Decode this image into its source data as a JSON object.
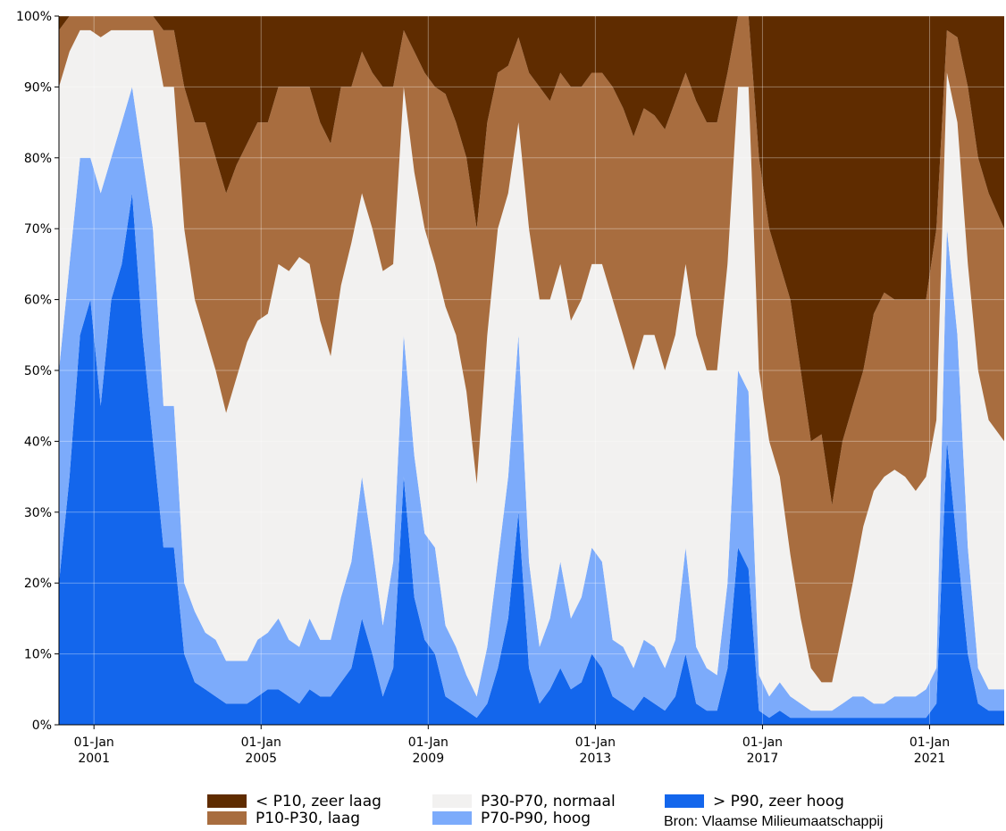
{
  "chart_data": {
    "type": "area",
    "stacked": true,
    "percent": true,
    "y_unit": "%",
    "ylim": [
      0,
      100
    ],
    "y_ticks": [
      0,
      10,
      20,
      30,
      40,
      50,
      60,
      70,
      80,
      90,
      100
    ],
    "y_tick_labels": [
      "0%",
      "10%",
      "20%",
      "30%",
      "40%",
      "50%",
      "60%",
      "70%",
      "80%",
      "90%",
      "100%"
    ],
    "xlim": [
      "2000-03-01",
      "2022-10-15"
    ],
    "x_ticks": [
      "2001-01-01",
      "2005-01-01",
      "2009-01-01",
      "2013-01-01",
      "2017-01-01",
      "2021-01-01"
    ],
    "x_tick_labels": [
      {
        "line1": "01-Jan",
        "line2": "2001"
      },
      {
        "line1": "01-Jan",
        "line2": "2005"
      },
      {
        "line1": "01-Jan",
        "line2": "2009"
      },
      {
        "line1": "01-Jan",
        "line2": "2013"
      },
      {
        "line1": "01-Jan",
        "line2": "2017"
      },
      {
        "line1": "01-Jan",
        "line2": "2021"
      }
    ],
    "grid": true,
    "legend_position": "bottom",
    "series_order_bottom_to_top": [
      "> P90, zeer hoog",
      "P70-P90, hoog",
      "P30-P70, normaal",
      "P10-P30, laag",
      "< P10, zeer laag"
    ],
    "series": [
      {
        "name": "< P10, zeer laag",
        "color": "#5f2c00"
      },
      {
        "name": "P10-P30, laag",
        "color": "#a86d3f"
      },
      {
        "name": "P30-P70, normaal",
        "color": "#f2f1f0"
      },
      {
        "name": "P70-P90, hoog",
        "color": "#7cabfb"
      },
      {
        "name": "> P90, zeer hoog",
        "color": "#1366ec"
      }
    ],
    "x": [
      "2000-03-01",
      "2000-06-01",
      "2000-09-01",
      "2000-12-01",
      "2001-03-01",
      "2001-06-01",
      "2001-09-01",
      "2001-12-01",
      "2002-03-01",
      "2002-06-01",
      "2002-09-01",
      "2002-12-01",
      "2003-03-01",
      "2003-06-01",
      "2003-09-01",
      "2003-12-01",
      "2004-03-01",
      "2004-06-01",
      "2004-09-01",
      "2004-12-01",
      "2005-03-01",
      "2005-06-01",
      "2005-09-01",
      "2005-12-01",
      "2006-03-01",
      "2006-06-01",
      "2006-09-01",
      "2006-12-01",
      "2007-03-01",
      "2007-06-01",
      "2007-09-01",
      "2007-12-01",
      "2008-03-01",
      "2008-06-01",
      "2008-09-01",
      "2008-12-01",
      "2009-03-01",
      "2009-06-01",
      "2009-09-01",
      "2009-12-01",
      "2010-03-01",
      "2010-06-01",
      "2010-09-01",
      "2010-12-01",
      "2011-03-01",
      "2011-06-01",
      "2011-09-01",
      "2011-12-01",
      "2012-03-01",
      "2012-06-01",
      "2012-09-01",
      "2012-12-01",
      "2013-03-01",
      "2013-06-01",
      "2013-09-01",
      "2013-12-01",
      "2014-03-01",
      "2014-06-01",
      "2014-09-01",
      "2014-12-01",
      "2015-03-01",
      "2015-06-01",
      "2015-09-01",
      "2015-12-01",
      "2016-03-01",
      "2016-06-01",
      "2016-09-01",
      "2016-12-01",
      "2017-03-01",
      "2017-06-01",
      "2017-09-01",
      "2017-12-01",
      "2018-03-01",
      "2018-06-01",
      "2018-09-01",
      "2018-12-01",
      "2019-03-01",
      "2019-06-01",
      "2019-09-01",
      "2019-12-01",
      "2020-03-01",
      "2020-06-01",
      "2020-09-01",
      "2020-12-01",
      "2021-03-01",
      "2021-06-01",
      "2021-09-01",
      "2021-12-01",
      "2022-03-01",
      "2022-06-01",
      "2022-09-01"
    ],
    "values": {
      "p90_zeer_hoog": [
        20,
        35,
        55,
        60,
        45,
        60,
        65,
        75,
        55,
        40,
        25,
        25,
        10,
        6,
        5,
        4,
        3,
        3,
        3,
        4,
        5,
        5,
        4,
        3,
        5,
        4,
        4,
        6,
        8,
        15,
        10,
        4,
        8,
        35,
        18,
        12,
        10,
        4,
        3,
        2,
        1,
        3,
        8,
        15,
        30,
        8,
        3,
        5,
        8,
        5,
        6,
        10,
        8,
        4,
        3,
        2,
        4,
        3,
        2,
        4,
        10,
        3,
        2,
        2,
        8,
        25,
        22,
        2,
        1,
        2,
        1,
        1,
        1,
        1,
        1,
        1,
        1,
        1,
        1,
        1,
        1,
        1,
        1,
        1,
        3,
        40,
        25,
        10,
        3,
        2,
        2
      ],
      "p70_p90_hoog": [
        30,
        30,
        25,
        20,
        30,
        20,
        20,
        15,
        25,
        30,
        20,
        20,
        10,
        10,
        8,
        8,
        6,
        6,
        6,
        8,
        8,
        10,
        8,
        8,
        10,
        8,
        8,
        12,
        15,
        20,
        15,
        10,
        15,
        20,
        20,
        15,
        15,
        10,
        8,
        5,
        3,
        8,
        15,
        20,
        25,
        15,
        8,
        10,
        15,
        10,
        12,
        15,
        15,
        8,
        8,
        6,
        8,
        8,
        6,
        8,
        15,
        8,
        6,
        5,
        12,
        25,
        25,
        5,
        3,
        4,
        3,
        2,
        1,
        1,
        1,
        2,
        3,
        3,
        2,
        2,
        3,
        3,
        3,
        4,
        5,
        30,
        30,
        15,
        5,
        3,
        3
      ],
      "p30_p70_normaal": [
        40,
        30,
        18,
        18,
        22,
        18,
        13,
        8,
        18,
        28,
        45,
        45,
        50,
        44,
        42,
        38,
        35,
        40,
        45,
        45,
        45,
        50,
        52,
        55,
        50,
        45,
        40,
        44,
        45,
        40,
        45,
        50,
        42,
        35,
        40,
        43,
        40,
        45,
        44,
        40,
        30,
        44,
        47,
        40,
        30,
        47,
        49,
        45,
        42,
        42,
        42,
        40,
        42,
        48,
        44,
        42,
        43,
        44,
        42,
        43,
        40,
        44,
        42,
        43,
        45,
        40,
        43,
        43,
        36,
        29,
        20,
        12,
        6,
        4,
        4,
        10,
        16,
        24,
        30,
        32,
        32,
        31,
        29,
        30,
        35,
        22,
        30,
        40,
        42,
        38,
        35
      ],
      "p10_p30_laag": [
        8,
        5,
        2,
        2,
        3,
        2,
        2,
        2,
        2,
        2,
        8,
        8,
        20,
        25,
        30,
        30,
        31,
        30,
        28,
        28,
        27,
        25,
        26,
        24,
        25,
        28,
        30,
        28,
        22,
        20,
        22,
        26,
        25,
        8,
        17,
        22,
        25,
        30,
        30,
        33,
        36,
        30,
        22,
        18,
        12,
        22,
        30,
        28,
        27,
        33,
        30,
        27,
        27,
        30,
        32,
        33,
        32,
        31,
        34,
        33,
        27,
        33,
        35,
        35,
        27,
        10,
        10,
        30,
        30,
        30,
        36,
        35,
        32,
        35,
        25,
        27,
        25,
        22,
        25,
        26,
        24,
        25,
        27,
        25,
        27,
        6,
        12,
        25,
        30,
        32,
        30
      ],
      "p10_zeer_laag": [
        2,
        0,
        0,
        0,
        0,
        0,
        0,
        0,
        0,
        0,
        2,
        2,
        10,
        15,
        15,
        20,
        25,
        21,
        18,
        15,
        15,
        10,
        10,
        10,
        10,
        15,
        18,
        10,
        10,
        5,
        8,
        10,
        10,
        2,
        5,
        8,
        10,
        11,
        15,
        20,
        30,
        15,
        8,
        7,
        3,
        8,
        10,
        12,
        8,
        10,
        10,
        8,
        8,
        10,
        13,
        17,
        13,
        14,
        16,
        12,
        8,
        12,
        15,
        15,
        8,
        0,
        0,
        20,
        30,
        35,
        40,
        50,
        60,
        59,
        69,
        60,
        55,
        50,
        42,
        39,
        40,
        40,
        40,
        40,
        30,
        2,
        3,
        10,
        20,
        25,
        30
      ]
    }
  },
  "footer": {
    "source": "Bron: Vlaamse Milieumaatschappij"
  }
}
